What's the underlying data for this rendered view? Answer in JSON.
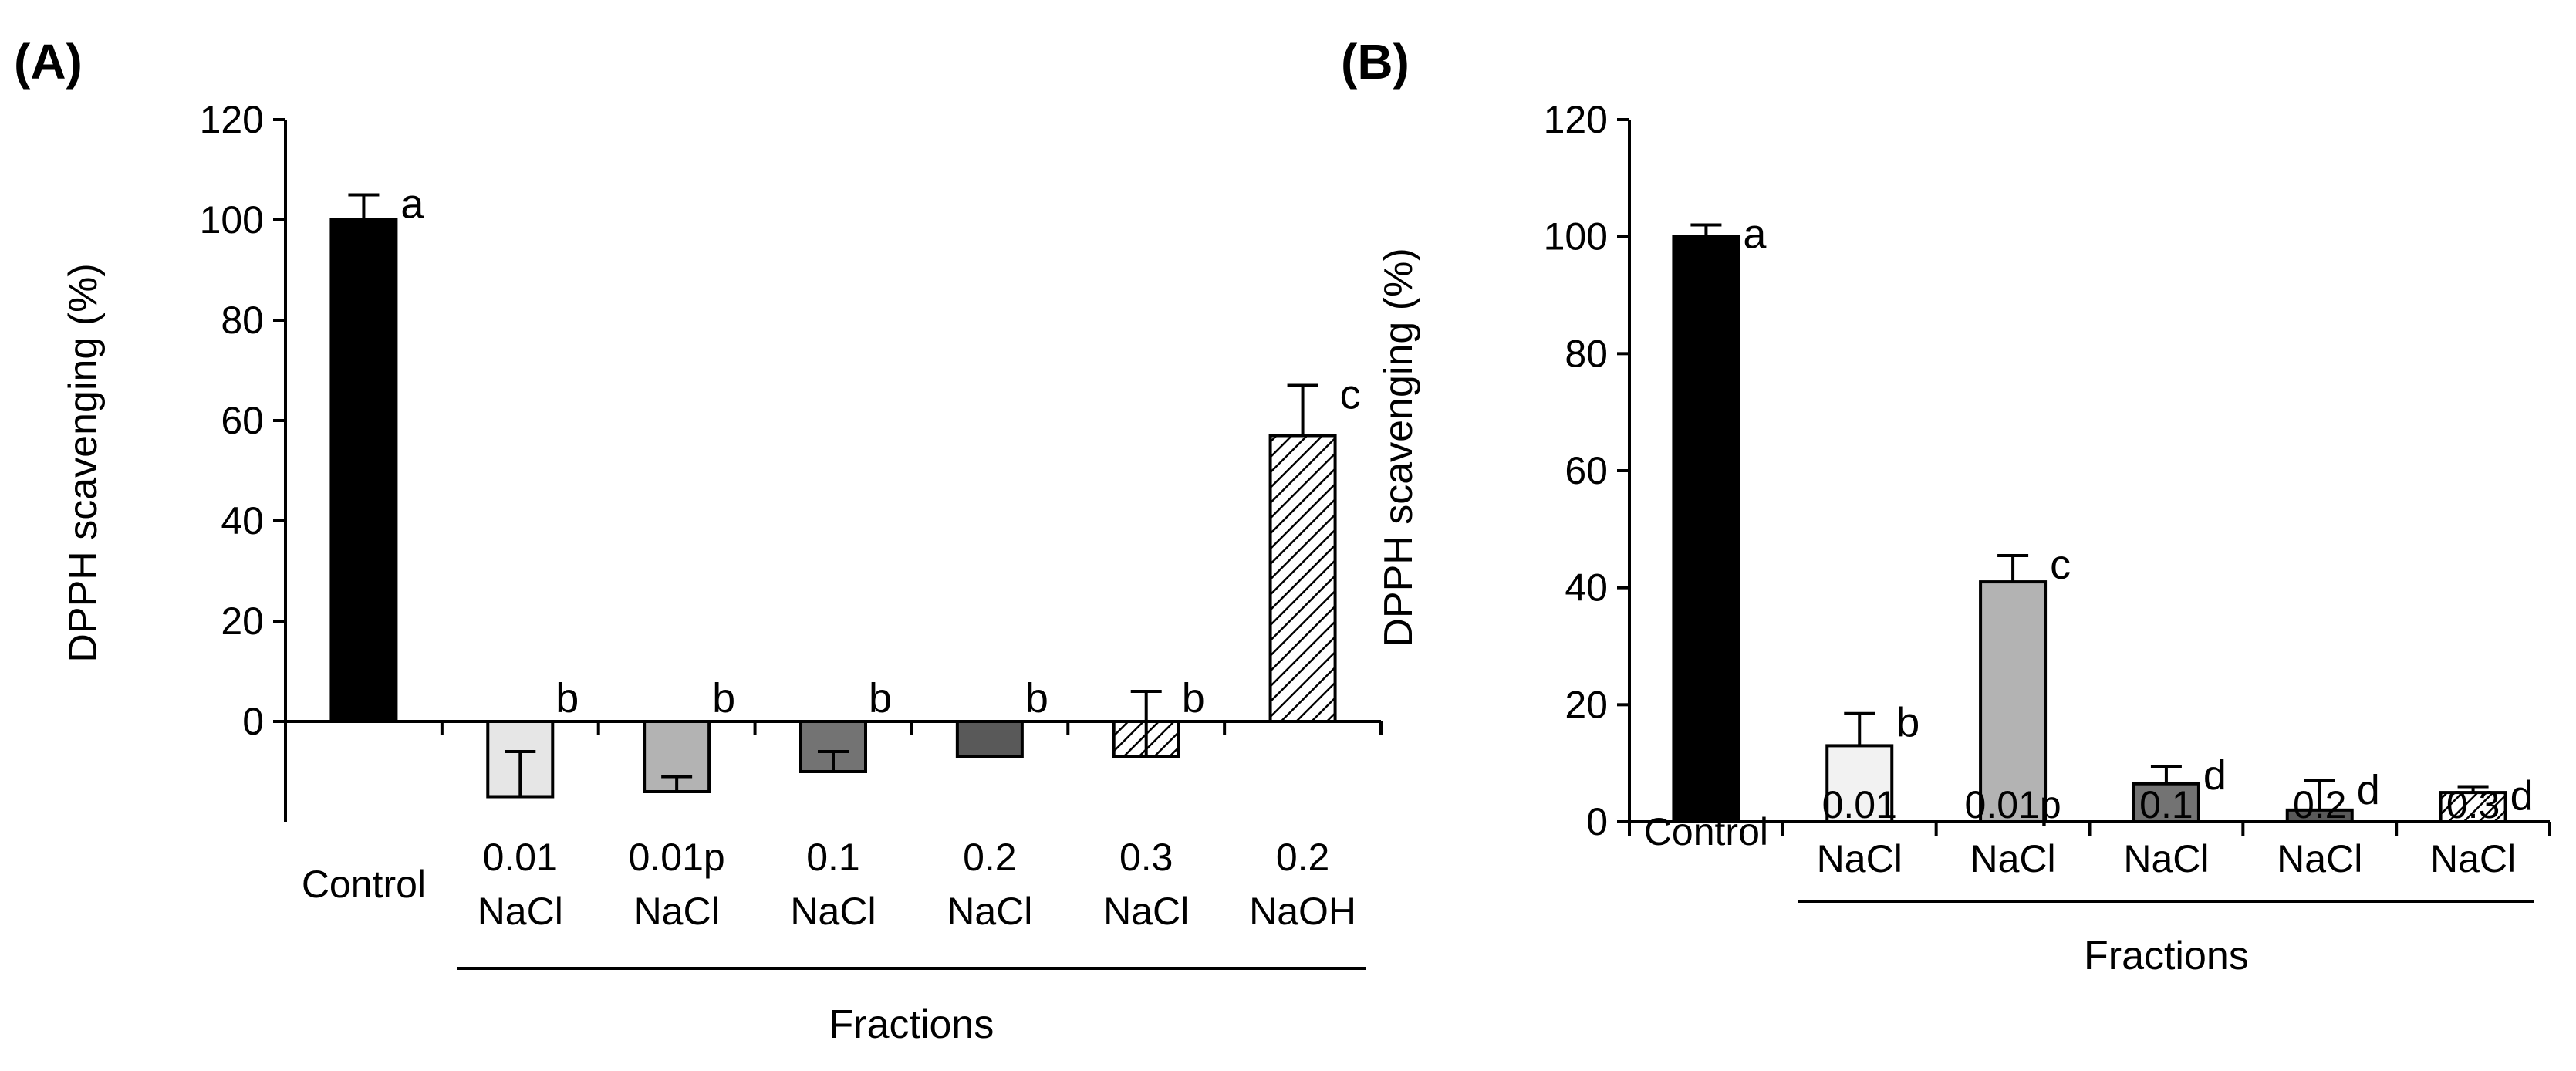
{
  "chart_data": [
    {
      "panel_label": "(A)",
      "type": "bar",
      "ylabel": "DPPH scavenging (%)",
      "xlabel": "Fractions",
      "ylim": [
        -20,
        120
      ],
      "yticks": [
        0,
        20,
        40,
        60,
        80,
        100,
        120
      ],
      "categories": [
        {
          "lines": [
            "Control"
          ]
        },
        {
          "lines": [
            "0.01",
            "NaCl"
          ]
        },
        {
          "lines": [
            "0.01p",
            "NaCl"
          ]
        },
        {
          "lines": [
            "0.1",
            "NaCl"
          ]
        },
        {
          "lines": [
            "0.2",
            "NaCl"
          ]
        },
        {
          "lines": [
            "0.3",
            "NaCl"
          ]
        },
        {
          "lines": [
            "0.2",
            "NaOH"
          ]
        }
      ],
      "values": [
        100,
        -15,
        -14,
        -10,
        -7,
        -7,
        57
      ],
      "errors": [
        5,
        9,
        3,
        4,
        0,
        13,
        10
      ],
      "significance": [
        "a",
        "b",
        "b",
        "b",
        "b",
        "b",
        "c"
      ],
      "fills": [
        "black",
        "light-gray",
        "gray",
        "dark-gray",
        "darker-gray",
        "hatch",
        "hatch"
      ],
      "fraction_group_start": 1
    },
    {
      "panel_label": "(B)",
      "type": "bar",
      "ylabel": "DPPH scavenging (%)",
      "xlabel": "Fractions",
      "ylim": [
        0,
        120
      ],
      "yticks": [
        0,
        20,
        40,
        60,
        80,
        100,
        120
      ],
      "categories": [
        {
          "lines": [
            "Control"
          ]
        },
        {
          "lines": [
            "0.01",
            "NaCl"
          ]
        },
        {
          "lines": [
            "0.01p",
            "NaCl"
          ]
        },
        {
          "lines": [
            "0.1",
            "NaCl"
          ]
        },
        {
          "lines": [
            "0.2",
            "NaCl"
          ]
        },
        {
          "lines": [
            "0.3",
            "NaCl"
          ]
        }
      ],
      "values": [
        100,
        13,
        41,
        6.5,
        2,
        5
      ],
      "errors": [
        2,
        5.5,
        4.5,
        3,
        5,
        1
      ],
      "significance": [
        "a",
        "b",
        "c",
        "d",
        "d",
        "d"
      ],
      "fills": [
        "black",
        "lightest-gray",
        "gray",
        "dark-gray",
        "darker-gray",
        "hatch"
      ],
      "fraction_group_start": 1
    }
  ],
  "colors": {
    "black": "#000000",
    "lightest-gray": "#f2f2f2",
    "light-gray": "#e6e6e6",
    "gray": "#b3b3b3",
    "dark-gray": "#737373",
    "darker-gray": "#595959",
    "axis": "#000000"
  }
}
